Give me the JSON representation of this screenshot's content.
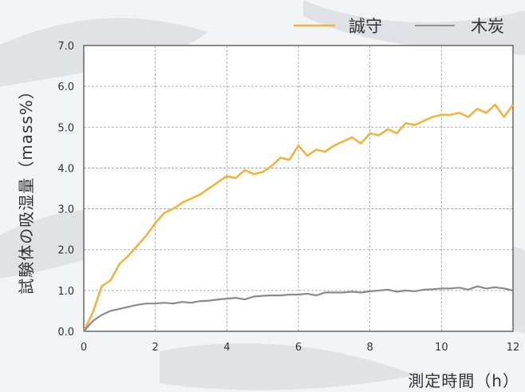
{
  "chart_data": {
    "type": "line",
    "xlabel": "測定時間（h）",
    "ylabel": "試験体の吸湿量（mass%）",
    "xlim": [
      0,
      12
    ],
    "ylim": [
      0,
      7
    ],
    "x_ticks": [
      "0",
      "2",
      "4",
      "6",
      "8",
      "10",
      "12"
    ],
    "y_ticks": [
      "0.0",
      "1.0",
      "2.0",
      "3.0",
      "4.0",
      "5.0",
      "6.0",
      "7.0"
    ],
    "grid": true,
    "legend_position": "top-right",
    "series": [
      {
        "name": "誠守",
        "color": "#f0b43c",
        "x": [
          0,
          0.25,
          0.5,
          0.75,
          1,
          1.25,
          1.5,
          1.75,
          2,
          2.25,
          2.5,
          2.75,
          3,
          3.25,
          3.5,
          3.75,
          4,
          4.25,
          4.5,
          4.75,
          5,
          5.25,
          5.5,
          5.75,
          6,
          6.25,
          6.5,
          6.75,
          7,
          7.25,
          7.5,
          7.75,
          8,
          8.25,
          8.5,
          8.75,
          9,
          9.25,
          9.5,
          9.75,
          10,
          10.25,
          10.5,
          10.75,
          11,
          11.25,
          11.5,
          11.75,
          12
        ],
        "y": [
          0.0,
          0.45,
          1.1,
          1.25,
          1.65,
          1.85,
          2.1,
          2.35,
          2.65,
          2.9,
          3.0,
          3.15,
          3.25,
          3.35,
          3.5,
          3.65,
          3.8,
          3.75,
          3.95,
          3.85,
          3.9,
          4.05,
          4.25,
          4.2,
          4.55,
          4.3,
          4.45,
          4.4,
          4.55,
          4.65,
          4.75,
          4.6,
          4.85,
          4.8,
          4.95,
          4.85,
          5.1,
          5.05,
          5.15,
          5.25,
          5.3,
          5.3,
          5.35,
          5.25,
          5.45,
          5.35,
          5.55,
          5.25,
          5.55
        ]
      },
      {
        "name": "木炭",
        "color": "#8a8a8a",
        "x": [
          0,
          0.25,
          0.5,
          0.75,
          1,
          1.25,
          1.5,
          1.75,
          2,
          2.25,
          2.5,
          2.75,
          3,
          3.25,
          3.5,
          3.75,
          4,
          4.25,
          4.5,
          4.75,
          5,
          5.25,
          5.5,
          5.75,
          6,
          6.25,
          6.5,
          6.75,
          7,
          7.25,
          7.5,
          7.75,
          8,
          8.25,
          8.5,
          8.75,
          9,
          9.25,
          9.5,
          9.75,
          10,
          10.25,
          10.5,
          10.75,
          11,
          11.25,
          11.5,
          11.75,
          12
        ],
        "y": [
          0.0,
          0.25,
          0.4,
          0.5,
          0.55,
          0.6,
          0.65,
          0.68,
          0.68,
          0.7,
          0.68,
          0.72,
          0.7,
          0.74,
          0.75,
          0.78,
          0.8,
          0.82,
          0.78,
          0.85,
          0.87,
          0.88,
          0.88,
          0.9,
          0.9,
          0.92,
          0.88,
          0.95,
          0.95,
          0.95,
          0.97,
          0.95,
          0.98,
          1.0,
          1.02,
          0.97,
          1.0,
          0.98,
          1.02,
          1.03,
          1.05,
          1.05,
          1.07,
          1.02,
          1.1,
          1.05,
          1.08,
          1.05,
          1.0
        ]
      }
    ]
  }
}
